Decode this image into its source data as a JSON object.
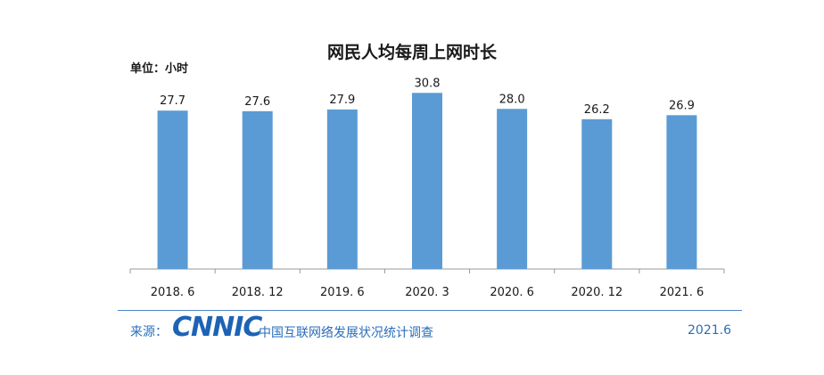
{
  "header": {
    "title": "网民人均每周上网时长",
    "unit": "单位：小时"
  },
  "footer": {
    "source_label": "来源：",
    "logo": "CNNIC",
    "org": "中国互联网络发展状况统计调查",
    "date": "2021.6"
  },
  "colors": {
    "bar": "#5b9bd5",
    "axis": "#999999",
    "text": "#1a1a1a",
    "footer": "#2a6ebb"
  },
  "chart_data": {
    "type": "bar",
    "title": "网民人均每周上网时长",
    "xlabel": "",
    "ylabel": "",
    "unit_label": "单位：小时",
    "categories": [
      "2018. 6",
      "2018. 12",
      "2019. 6",
      "2020. 3",
      "2020. 6",
      "2020. 12",
      "2021. 6"
    ],
    "values": [
      27.7,
      27.6,
      27.9,
      30.8,
      28.0,
      26.2,
      26.9
    ],
    "value_labels": [
      "27.7",
      "27.6",
      "27.9",
      "30.8",
      "28.0",
      "26.2",
      "26.9"
    ],
    "ylim": [
      0,
      31
    ],
    "grid": false,
    "legend": "none"
  }
}
